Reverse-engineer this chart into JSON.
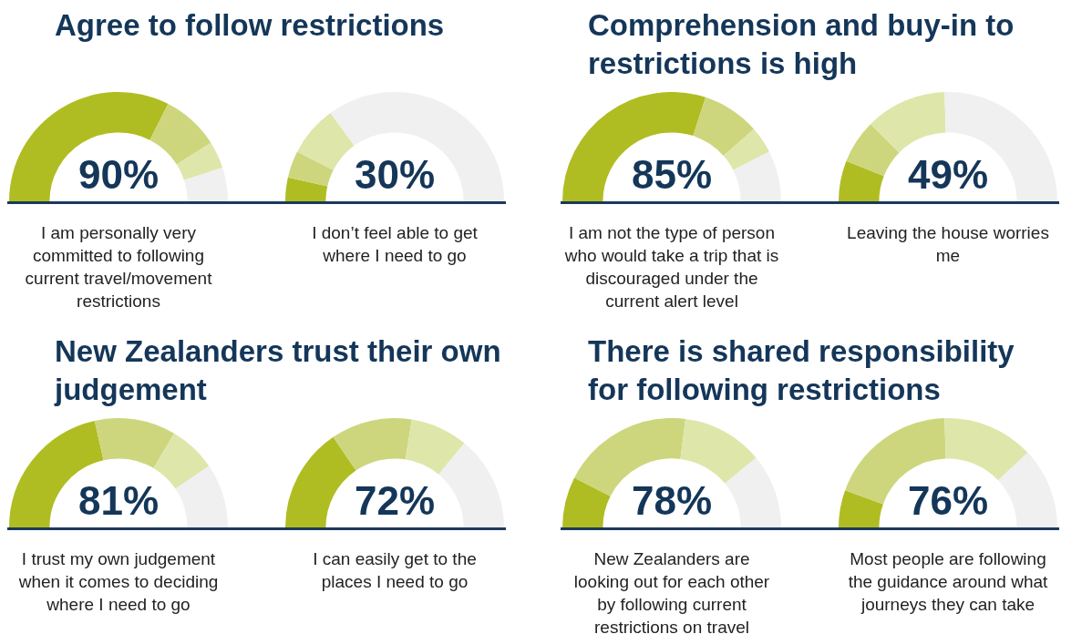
{
  "chart_data": [
    {
      "type": "donut",
      "title": "Agree to follow restrictions",
      "xlabel": "I am personally very committed to following current travel/movement restrictions",
      "annotations": [
        "90%"
      ],
      "categories": [
        null,
        null,
        null,
        null
      ],
      "values": [
        65,
        17,
        8,
        10
      ],
      "colors": [
        "#afbd22",
        "#cdd67c",
        "#dfe6aa",
        "#f0f0f0"
      ],
      "legend": false
    },
    {
      "type": "donut",
      "xlabel": "I don’t feel able to get where I need to go",
      "annotations": [
        "30%"
      ],
      "categories": [
        null,
        null,
        null,
        null
      ],
      "values": [
        7,
        8,
        15,
        70
      ],
      "colors": [
        "#afbd22",
        "#cdd67c",
        "#dfe6aa",
        "#f0f0f0"
      ],
      "legend": false
    },
    {
      "type": "donut",
      "title": "Comprehension and buy-in to restrictions is high",
      "xlabel": "I am not the type of person who would take a trip that is discouraged under the current alert level",
      "annotations": [
        "85%"
      ],
      "categories": [
        null,
        null,
        null,
        null
      ],
      "values": [
        60,
        17,
        8,
        15
      ],
      "colors": [
        "#afbd22",
        "#cdd67c",
        "#dfe6aa",
        "#f0f0f0"
      ],
      "legend": false
    },
    {
      "type": "donut",
      "xlabel": "Leaving the house worries me",
      "annotations": [
        "49%"
      ],
      "categories": [
        null,
        null,
        null,
        null
      ],
      "values": [
        12,
        13,
        24,
        51
      ],
      "colors": [
        "#afbd22",
        "#cdd67c",
        "#dfe6aa",
        "#f0f0f0"
      ],
      "legend": false
    },
    {
      "type": "donut",
      "title": "New Zealanders trust their own judgement",
      "xlabel": "I trust my own judgement when it comes to deciding where I need to go",
      "annotations": [
        "81%"
      ],
      "categories": [
        null,
        null,
        null,
        null
      ],
      "values": [
        43,
        24,
        14,
        19
      ],
      "colors": [
        "#afbd22",
        "#cdd67c",
        "#dfe6aa",
        "#f0f0f0"
      ],
      "legend": false
    },
    {
      "type": "donut",
      "xlabel": "I can easily get to the places I need to go",
      "annotations": [
        "72%"
      ],
      "categories": [
        null,
        null,
        null,
        null
      ],
      "values": [
        31,
        24,
        17,
        28
      ],
      "colors": [
        "#afbd22",
        "#cdd67c",
        "#dfe6aa",
        "#f0f0f0"
      ],
      "legend": false
    },
    {
      "type": "donut",
      "title": "There is shared responsibility for following restrictions",
      "xlabel": "New Zealanders are looking out for each other by following current restrictions on travel",
      "annotations": [
        "78%"
      ],
      "categories": [
        null,
        null,
        null,
        null
      ],
      "values": [
        15,
        39,
        24,
        22
      ],
      "colors": [
        "#afbd22",
        "#cdd67c",
        "#dfe6aa",
        "#f0f0f0"
      ],
      "legend": false
    },
    {
      "type": "donut",
      "xlabel": "Most people are following the guidance around what journeys they can take",
      "annotations": [
        "76%"
      ],
      "categories": [
        null,
        null,
        null,
        null
      ],
      "values": [
        11,
        38,
        27,
        24
      ],
      "colors": [
        "#afbd22",
        "#cdd67c",
        "#dfe6aa",
        "#f0f0f0"
      ],
      "legend": false
    }
  ]
}
